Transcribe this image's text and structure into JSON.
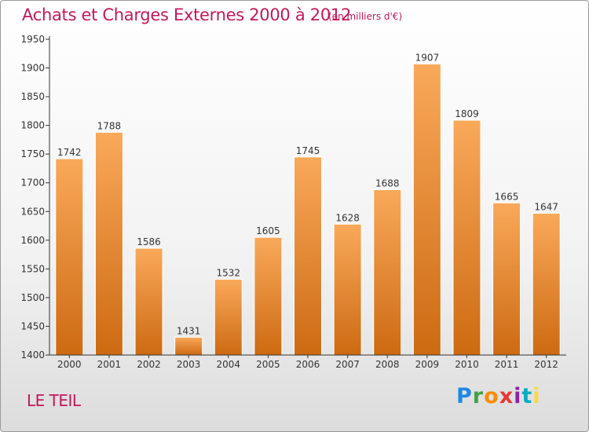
{
  "header": {
    "title": "Achats et Charges Externes 2000 à 2012",
    "unit": "(en milliers d'€)"
  },
  "footer": {
    "location": "LE TEIL",
    "logo": {
      "letters": [
        "P",
        "r",
        "o",
        "x",
        "i",
        "t",
        "i"
      ],
      "colors": [
        "#1e88e5",
        "#43a047",
        "#fb8c00",
        "#e53935",
        "#8e24aa",
        "#00acc1",
        "#fdd835"
      ]
    }
  },
  "colors": {
    "bar_light": "#f9a95a",
    "bar_dark": "#cd6a12",
    "text_accent": "#c2185b"
  },
  "chart_data": {
    "type": "bar",
    "categories": [
      "2000",
      "2001",
      "2002",
      "2003",
      "2004",
      "2005",
      "2006",
      "2007",
      "2008",
      "2009",
      "2010",
      "2011",
      "2012"
    ],
    "values": [
      1742,
      1788,
      1586,
      1431,
      1532,
      1605,
      1745,
      1628,
      1688,
      1907,
      1809,
      1665,
      1647
    ],
    "y_ticks": [
      1400,
      1450,
      1500,
      1550,
      1600,
      1650,
      1700,
      1750,
      1800,
      1850,
      1900,
      1950
    ],
    "ylim": [
      1400,
      1950
    ],
    "grid": false,
    "legend": "none"
  }
}
